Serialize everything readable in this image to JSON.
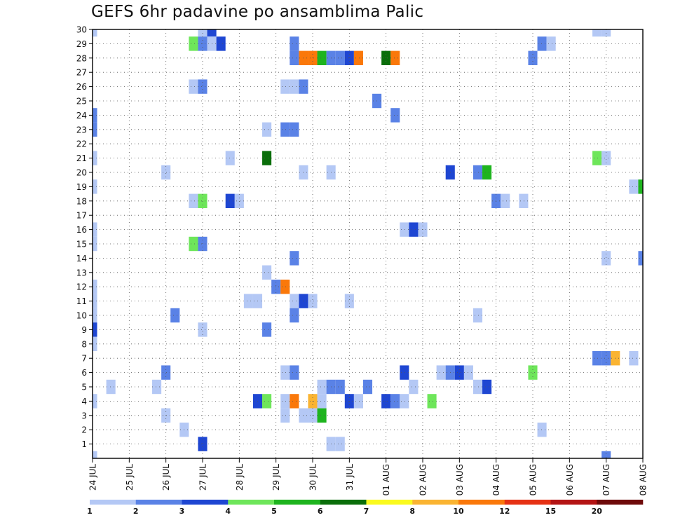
{
  "chart_data": {
    "type": "heatmap",
    "title": "GEFS 6hr padavine po ansamblima Palic",
    "xlabel": "",
    "ylabel": "",
    "x_ticks": [
      "24 JUL",
      "25 JUL",
      "26 JUL",
      "27 JUL",
      "28 JUL",
      "29 JUL",
      "30 JUL",
      "31 JUL",
      "01 AUG",
      "02 AUG",
      "03 AUG",
      "04 AUG",
      "05 AUG",
      "06 AUG",
      "07 AUG",
      "08 AUG"
    ],
    "y_ticks": [
      1,
      2,
      3,
      4,
      5,
      6,
      7,
      8,
      9,
      10,
      11,
      12,
      13,
      14,
      15,
      16,
      17,
      18,
      19,
      20,
      21,
      22,
      23,
      24,
      25,
      26,
      27,
      28,
      29,
      30
    ],
    "xlim_steps": [
      0,
      60
    ],
    "ylim": [
      0,
      30
    ],
    "grid": true,
    "colorbar": {
      "position": "bottom",
      "labels": [
        "1",
        "2",
        "3",
        "4",
        "5",
        "6",
        "7",
        "8",
        "10",
        "12",
        "15",
        "20"
      ],
      "colors": [
        "#b4c8f5",
        "#5a82e6",
        "#1e46d2",
        "#6ee65a",
        "#1eb41e",
        "#0a6e0a",
        "#fafa1e",
        "#fab432",
        "#fa780a",
        "#e63214",
        "#b41414",
        "#6e0a0a"
      ]
    },
    "cells": [
      [
        0,
        30,
        1
      ],
      [
        0,
        24,
        2
      ],
      [
        0,
        23,
        2
      ],
      [
        0,
        21,
        1
      ],
      [
        0,
        19,
        1
      ],
      [
        0,
        16,
        1
      ],
      [
        0,
        15,
        1
      ],
      [
        0,
        12,
        1
      ],
      [
        0,
        11,
        1
      ],
      [
        0,
        10,
        1
      ],
      [
        0,
        9,
        3
      ],
      [
        0,
        8,
        1
      ],
      [
        0,
        4,
        1
      ],
      [
        0,
        0,
        1
      ],
      [
        2,
        5,
        1
      ],
      [
        7,
        5,
        1
      ],
      [
        8,
        20,
        1
      ],
      [
        8,
        6,
        2
      ],
      [
        8,
        3,
        1
      ],
      [
        9,
        10,
        2
      ],
      [
        10,
        2,
        1
      ],
      [
        11,
        29,
        4
      ],
      [
        11,
        26,
        1
      ],
      [
        11,
        18,
        1
      ],
      [
        11,
        15,
        4
      ],
      [
        12,
        30,
        1
      ],
      [
        12,
        29,
        2
      ],
      [
        12,
        26,
        2
      ],
      [
        12,
        18,
        4
      ],
      [
        12,
        15,
        2
      ],
      [
        12,
        9,
        1
      ],
      [
        12,
        1,
        3
      ],
      [
        13,
        30,
        3
      ],
      [
        13,
        29,
        1
      ],
      [
        14,
        29,
        3
      ],
      [
        15,
        21,
        1
      ],
      [
        15,
        18,
        3
      ],
      [
        16,
        18,
        1
      ],
      [
        17,
        11,
        1
      ],
      [
        18,
        11,
        1
      ],
      [
        18,
        4,
        3
      ],
      [
        19,
        23,
        1
      ],
      [
        19,
        21,
        6
      ],
      [
        19,
        13,
        1
      ],
      [
        19,
        9,
        2
      ],
      [
        19,
        4,
        4
      ],
      [
        20,
        12,
        2
      ],
      [
        21,
        12,
        9
      ],
      [
        21,
        4,
        1
      ],
      [
        21,
        6,
        1
      ],
      [
        21,
        3,
        1
      ],
      [
        21,
        26,
        1
      ],
      [
        21,
        23,
        2
      ],
      [
        22,
        29,
        2
      ],
      [
        22,
        28,
        2
      ],
      [
        22,
        26,
        1
      ],
      [
        22,
        23,
        2
      ],
      [
        22,
        14,
        2
      ],
      [
        22,
        11,
        1
      ],
      [
        22,
        10,
        2
      ],
      [
        22,
        6,
        2
      ],
      [
        22,
        4,
        9
      ],
      [
        23,
        28,
        9
      ],
      [
        23,
        26,
        2
      ],
      [
        23,
        20,
        1
      ],
      [
        23,
        11,
        3
      ],
      [
        23,
        3,
        1
      ],
      [
        24,
        28,
        9
      ],
      [
        24,
        11,
        1
      ],
      [
        24,
        4,
        8
      ],
      [
        24,
        3,
        1
      ],
      [
        25,
        28,
        5
      ],
      [
        25,
        5,
        1
      ],
      [
        25,
        4,
        1
      ],
      [
        25,
        3,
        5
      ],
      [
        26,
        28,
        2
      ],
      [
        26,
        20,
        1
      ],
      [
        26,
        5,
        2
      ],
      [
        26,
        1,
        1
      ],
      [
        27,
        28,
        2
      ],
      [
        27,
        5,
        2
      ],
      [
        27,
        1,
        1
      ],
      [
        28,
        28,
        3
      ],
      [
        28,
        11,
        1
      ],
      [
        28,
        4,
        3
      ],
      [
        29,
        28,
        9
      ],
      [
        29,
        4,
        1
      ],
      [
        30,
        5,
        2
      ],
      [
        31,
        25,
        2
      ],
      [
        32,
        28,
        6
      ],
      [
        32,
        4,
        3
      ],
      [
        33,
        28,
        9
      ],
      [
        33,
        24,
        2
      ],
      [
        33,
        4,
        2
      ],
      [
        34,
        16,
        1
      ],
      [
        34,
        6,
        3
      ],
      [
        34,
        4,
        1
      ],
      [
        35,
        16,
        3
      ],
      [
        35,
        5,
        1
      ],
      [
        36,
        16,
        1
      ],
      [
        37,
        4,
        4
      ],
      [
        38,
        6,
        1
      ],
      [
        39,
        20,
        3
      ],
      [
        39,
        6,
        2
      ],
      [
        40,
        6,
        3
      ],
      [
        41,
        6,
        1
      ],
      [
        42,
        20,
        2
      ],
      [
        42,
        10,
        1
      ],
      [
        42,
        5,
        1
      ],
      [
        43,
        20,
        5
      ],
      [
        43,
        5,
        3
      ],
      [
        44,
        18,
        2
      ],
      [
        45,
        18,
        1
      ],
      [
        47,
        18,
        1
      ],
      [
        48,
        28,
        2
      ],
      [
        48,
        6,
        4
      ],
      [
        49,
        29,
        2
      ],
      [
        49,
        2,
        1
      ],
      [
        50,
        29,
        1
      ],
      [
        55,
        30,
        1
      ],
      [
        55,
        21,
        4
      ],
      [
        55,
        7,
        2
      ],
      [
        56,
        30,
        1
      ],
      [
        56,
        21,
        1
      ],
      [
        56,
        14,
        1
      ],
      [
        56,
        7,
        2
      ],
      [
        56,
        0,
        2
      ],
      [
        57,
        7,
        8
      ],
      [
        59,
        19,
        1
      ],
      [
        59,
        7,
        1
      ],
      [
        60,
        19,
        5
      ],
      [
        60,
        14,
        2
      ]
    ]
  }
}
